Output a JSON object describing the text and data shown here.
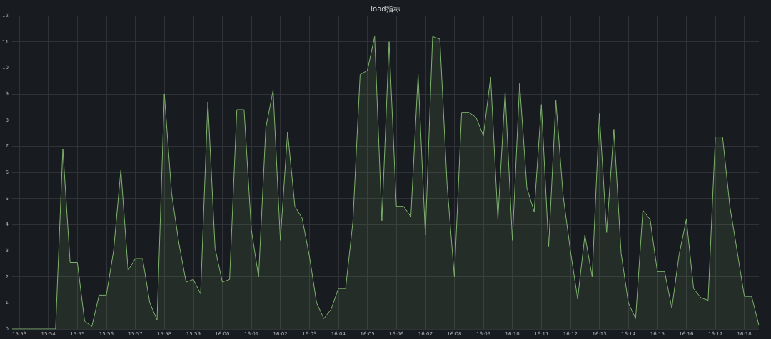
{
  "chart_data": {
    "type": "area",
    "title": "load指标",
    "x": [
      15.87917,
      15.88333,
      15.8875,
      15.89167,
      15.89583,
      15.9,
      15.90417,
      15.90833,
      15.9125,
      15.91667,
      15.92083,
      15.925,
      15.92917,
      15.93333,
      15.9375,
      15.94167,
      15.94583,
      15.95,
      15.95417,
      15.95833,
      15.9625,
      15.96667,
      15.97083,
      15.975,
      15.97917,
      15.98333,
      15.9875,
      15.99167,
      15.99583,
      16.0,
      16.00417,
      16.00833,
      16.0125,
      16.01667,
      16.02083,
      16.025,
      16.02917,
      16.03333,
      16.0375,
      16.04167,
      16.04583,
      16.05,
      16.05417,
      16.05833,
      16.0625,
      16.06667,
      16.07083,
      16.075,
      16.07917,
      16.08333,
      16.0875,
      16.09167,
      16.09583,
      16.1,
      16.10417,
      16.10833,
      16.1125,
      16.11667,
      16.12083,
      16.125,
      16.12917,
      16.13333,
      16.1375,
      16.14167,
      16.14583,
      16.15,
      16.15417,
      16.15833,
      16.1625,
      16.16667,
      16.17083,
      16.175,
      16.17917,
      16.18333,
      16.1875,
      16.19167,
      16.19583,
      16.2,
      16.20417,
      16.20833,
      16.2125,
      16.21667,
      16.22083,
      16.225,
      16.22917,
      16.23333,
      16.2375,
      16.24167,
      16.24583,
      16.25,
      16.25417,
      16.25833,
      16.2625,
      16.26667,
      16.27083,
      16.275,
      16.27917,
      16.28333,
      16.2875,
      16.29167,
      16.29583,
      16.3,
      16.30417,
      16.30833
    ],
    "series": [
      {
        "color": "#7eb26d",
        "values": [
          0,
          0,
          0,
          0,
          0,
          0,
          0,
          6.9,
          2.55,
          2.55,
          0.3,
          0.1,
          1.3,
          1.3,
          3.0,
          6.1,
          2.25,
          2.7,
          2.7,
          1.0,
          0.35,
          9.0,
          5.2,
          3.3,
          1.8,
          1.9,
          1.35,
          8.7,
          3.1,
          1.8,
          1.9,
          8.4,
          8.4,
          3.8,
          2.0,
          7.7,
          9.15,
          3.4,
          7.55,
          4.7,
          4.25,
          2.8,
          1.0,
          0.4,
          0.76,
          1.55,
          1.55,
          4.1,
          9.75,
          9.9,
          11.2,
          4.15,
          11.0,
          4.7,
          4.7,
          4.3,
          9.75,
          3.6,
          11.2,
          11.1,
          5.5,
          2.0,
          8.3,
          8.3,
          8.1,
          7.4,
          9.65,
          4.2,
          9.1,
          3.4,
          9.4,
          5.4,
          4.5,
          8.6,
          3.15,
          8.75,
          5.1,
          3.0,
          1.15,
          3.6,
          2.0,
          8.25,
          3.7,
          7.65,
          2.9,
          1.0,
          0.4,
          4.55,
          4.2,
          2.2,
          2.2,
          0.8,
          2.85,
          4.2,
          1.55,
          1.2,
          1.1,
          7.35,
          7.35,
          4.7,
          3.0,
          1.25,
          1.25,
          0.15
        ]
      }
    ],
    "xlim": [
      15.87917,
      16.30833
    ],
    "xticks": [
      {
        "value": 15.88333,
        "label": "15:53"
      },
      {
        "value": 15.9,
        "label": "15:54"
      },
      {
        "value": 15.91667,
        "label": "15:55"
      },
      {
        "value": 15.93333,
        "label": "15:56"
      },
      {
        "value": 15.95,
        "label": "15:57"
      },
      {
        "value": 15.96667,
        "label": "15:58"
      },
      {
        "value": 15.98333,
        "label": "15:59"
      },
      {
        "value": 16.0,
        "label": "16:00"
      },
      {
        "value": 16.01667,
        "label": "16:01"
      },
      {
        "value": 16.03333,
        "label": "16:02"
      },
      {
        "value": 16.05,
        "label": "16:03"
      },
      {
        "value": 16.06667,
        "label": "16:04"
      },
      {
        "value": 16.08333,
        "label": "16:05"
      },
      {
        "value": 16.1,
        "label": "16:06"
      },
      {
        "value": 16.11667,
        "label": "16:07"
      },
      {
        "value": 16.13333,
        "label": "16:08"
      },
      {
        "value": 16.15,
        "label": "16:09"
      },
      {
        "value": 16.16667,
        "label": "16:10"
      },
      {
        "value": 16.18333,
        "label": "16:11"
      },
      {
        "value": 16.2,
        "label": "16:12"
      },
      {
        "value": 16.21667,
        "label": "16:13"
      },
      {
        "value": 16.23333,
        "label": "16:14"
      },
      {
        "value": 16.25,
        "label": "16:15"
      },
      {
        "value": 16.26667,
        "label": "16:16"
      },
      {
        "value": 16.28333,
        "label": "16:17"
      },
      {
        "value": 16.3,
        "label": "16:18"
      }
    ],
    "ylim": [
      0,
      12
    ],
    "yticks": [
      0,
      1,
      2,
      3,
      4,
      5,
      6,
      7,
      8,
      9,
      10,
      11,
      12
    ],
    "grid": true,
    "marker": "none"
  }
}
